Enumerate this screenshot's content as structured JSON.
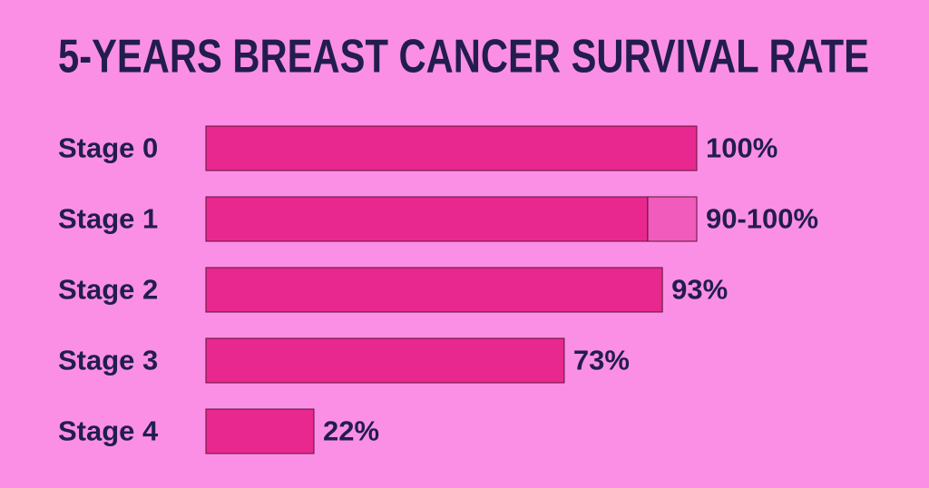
{
  "chart_data": {
    "type": "bar",
    "orientation": "horizontal",
    "title": "5-YEARS BREAST CANCER SURVIVAL RATE",
    "categories": [
      "Stage 0",
      "Stage 1",
      "Stage 2",
      "Stage 3",
      "Stage 4"
    ],
    "values": [
      100,
      90,
      93,
      73,
      22
    ],
    "upper": [
      null,
      100,
      null,
      null,
      null
    ],
    "value_labels": [
      "100%",
      "90-100%",
      "93%",
      "73%",
      "22%"
    ],
    "color": "#e8288f"
  }
}
